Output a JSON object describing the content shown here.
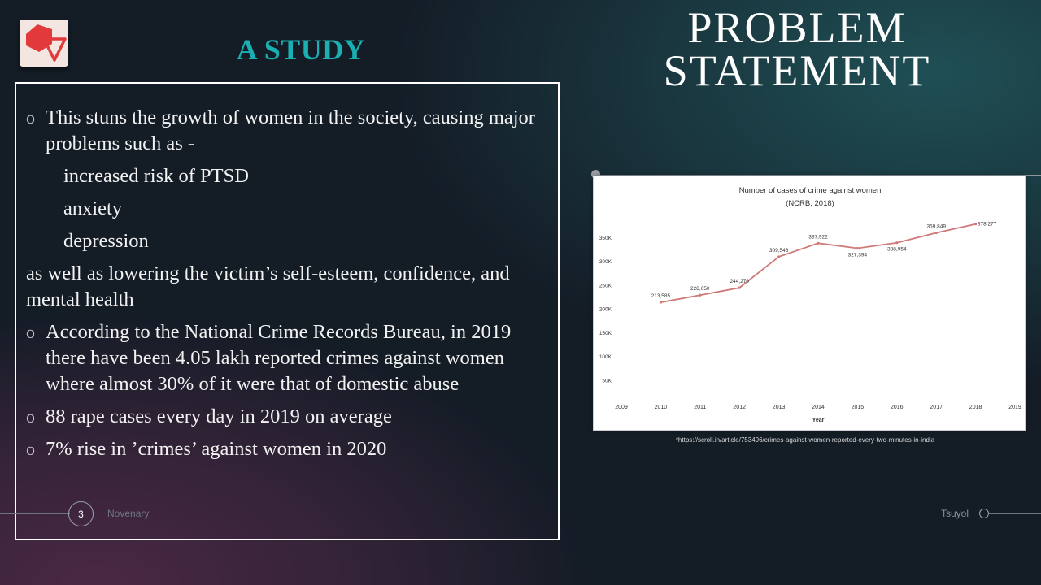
{
  "slide": {
    "study_title": "A STUDY",
    "problem_title_line1": "PROBLEM",
    "problem_title_line2": "STATEMENT",
    "bullet_marker": "o",
    "bullets": {
      "b1": "This stuns the growth of women in the society, causing major problems such as -",
      "sub1": "increased risk of PTSD",
      "sub2": "anxiety",
      "sub3": "depression",
      "plain": "as well as lowering the victim’s self-esteem, confidence, and mental health",
      "b2": "According to the National Crime Records Bureau, in 2019 there have been 4.05 lakh reported crimes against women where almost 30% of it were that of domestic abuse",
      "b3": "88 rape cases every day in 2019 on average",
      "b4": "7% rise in ’crimes’ against women in 2020"
    },
    "source": "*https://scroll.in/article/753496/crimes-against-women-reported-every-two-minutes-in-india",
    "footer": {
      "page_number": "3",
      "left_text": "Novenary",
      "right_text": "Tsuyol"
    },
    "colors": {
      "accent": "#1ab0b3",
      "line": "#d07a78",
      "logo_red": "#e23a3a"
    }
  },
  "chart_data": {
    "type": "line",
    "title": "Number of cases of crime against women",
    "subtitle": "(NCRB, 2018)",
    "xlabel": "Year",
    "ylabel": "",
    "x_ticks": [
      "2009",
      "2010",
      "2011",
      "2012",
      "2013",
      "2014",
      "2015",
      "2016",
      "2017",
      "2018",
      "2019"
    ],
    "y_ticks": [
      "50K",
      "100K",
      "150K",
      "200K",
      "250K",
      "300K",
      "350K"
    ],
    "ylim": [
      0,
      380000
    ],
    "grid": false,
    "series": [
      {
        "x": [
          2010,
          2011,
          2012,
          2013,
          2014,
          2015,
          2016,
          2017,
          2018
        ],
        "values": [
          213585,
          228650,
          244270,
          309546,
          337922,
          327394,
          338954,
          359849,
          378277
        ],
        "labels": [
          "213,585",
          "228,650",
          "244,270",
          "309,546",
          "337,922",
          "327,394",
          "338,954",
          "359,849",
          "378,277"
        ]
      }
    ]
  }
}
